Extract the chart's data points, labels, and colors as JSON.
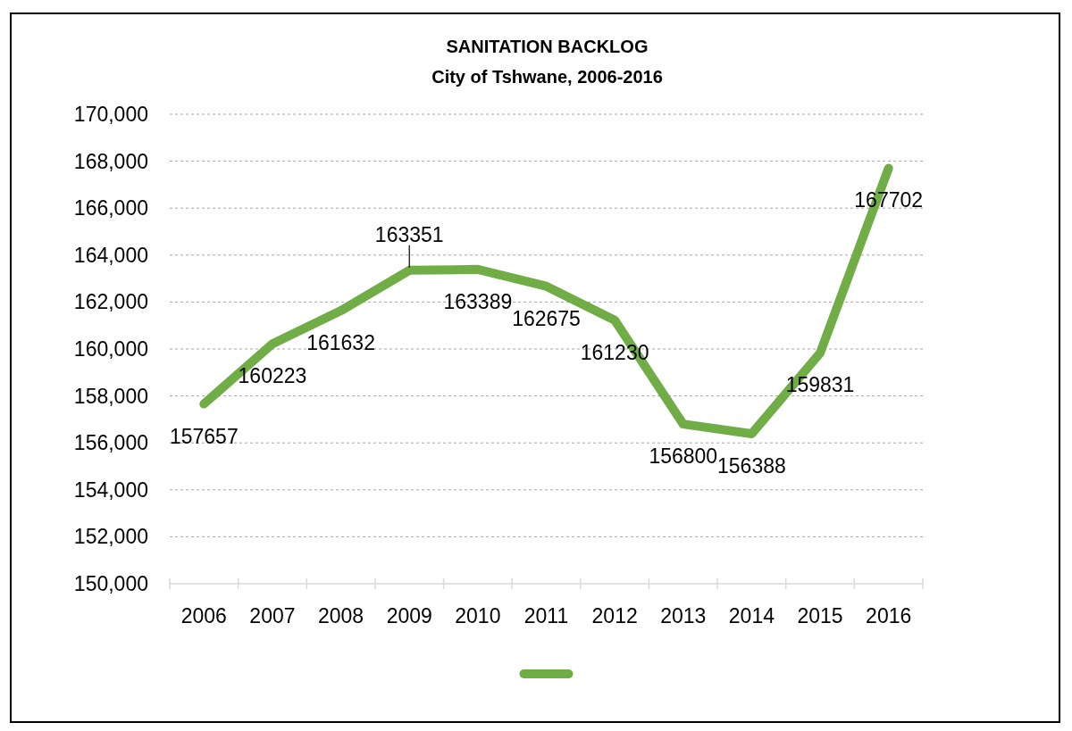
{
  "chart_data": {
    "type": "line",
    "title": "SANITATION BACKLOG",
    "subtitle": "City of Tshwane, 2006-2016",
    "categories": [
      "2006",
      "2007",
      "2008",
      "2009",
      "2010",
      "2011",
      "2012",
      "2013",
      "2014",
      "2015",
      "2016"
    ],
    "series": [
      {
        "color": "#70ad47",
        "values": [
          157657,
          160223,
          161632,
          163351,
          163389,
          162675,
          161230,
          156800,
          156388,
          159831,
          167702
        ]
      }
    ],
    "ylim": [
      150000,
      170000
    ],
    "yticks": [
      {
        "value": 150000,
        "label": "150,000"
      },
      {
        "value": 152000,
        "label": "152,000"
      },
      {
        "value": 154000,
        "label": "154,000"
      },
      {
        "value": 156000,
        "label": "156,000"
      },
      {
        "value": 158000,
        "label": "158,000"
      },
      {
        "value": 160000,
        "label": "160,000"
      },
      {
        "value": 162000,
        "label": "162,000"
      },
      {
        "value": 164000,
        "label": "164,000"
      },
      {
        "value": 166000,
        "label": "166,000"
      },
      {
        "value": 168000,
        "label": "168,000"
      },
      {
        "value": 170000,
        "label": "170,000"
      }
    ],
    "grid": "y",
    "data_labels": true
  }
}
